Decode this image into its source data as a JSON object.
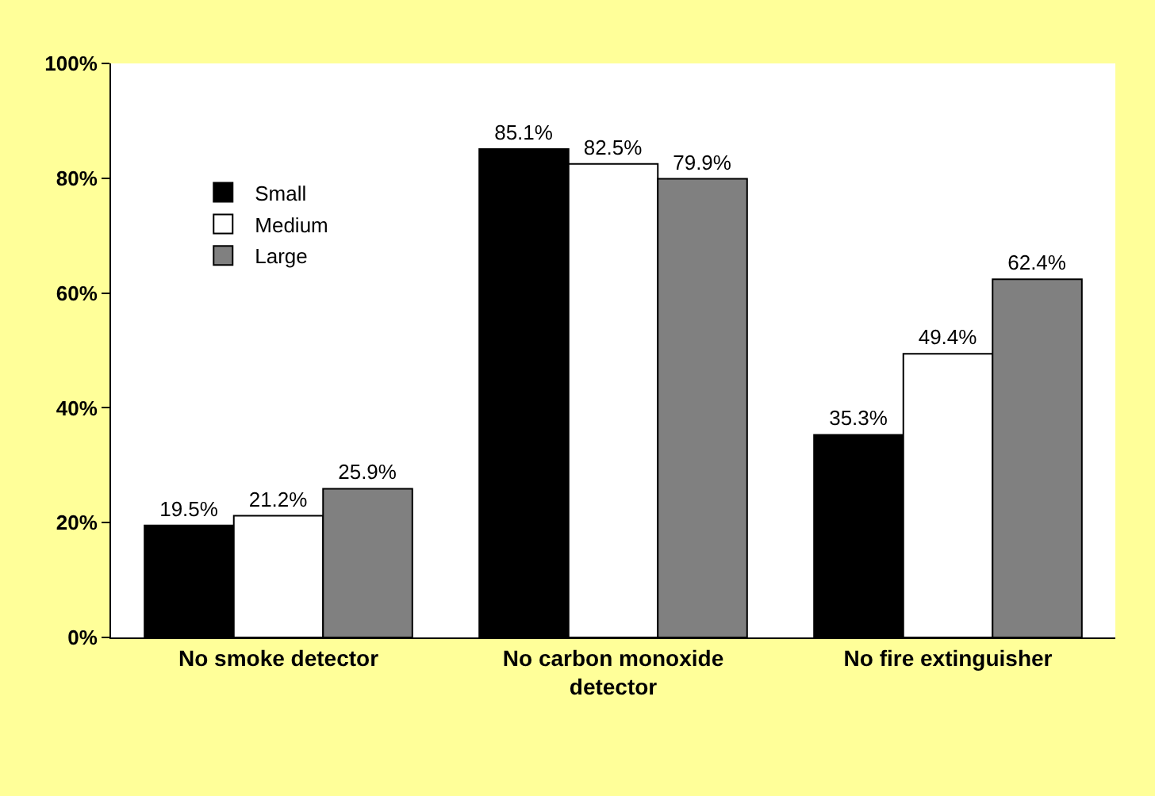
{
  "chart_data": {
    "type": "bar",
    "categories": [
      "No smoke detector",
      "No carbon monoxide detector",
      "No fire extinguisher"
    ],
    "series": [
      {
        "name": "Small",
        "color": "#000000",
        "values": [
          19.5,
          85.1,
          35.3
        ],
        "value_labels": [
          "19.5%",
          "85.1%",
          "35.3%"
        ]
      },
      {
        "name": "Medium",
        "color": "#ffffff",
        "values": [
          21.2,
          82.5,
          49.4
        ],
        "value_labels": [
          "21.2%",
          "82.5%",
          "49.4%"
        ]
      },
      {
        "name": "Large",
        "color": "#808080",
        "values": [
          25.9,
          79.9,
          62.4
        ],
        "value_labels": [
          "25.9%",
          "79.9%",
          "62.4%"
        ]
      }
    ],
    "ylim": [
      0,
      100
    ],
    "yticks": [
      {
        "value": 0,
        "label": "0%"
      },
      {
        "value": 20,
        "label": "20%"
      },
      {
        "value": 40,
        "label": "40%"
      },
      {
        "value": 60,
        "label": "60%"
      },
      {
        "value": 80,
        "label": "80%"
      },
      {
        "value": 100,
        "label": "100%"
      }
    ],
    "legend": "left"
  }
}
